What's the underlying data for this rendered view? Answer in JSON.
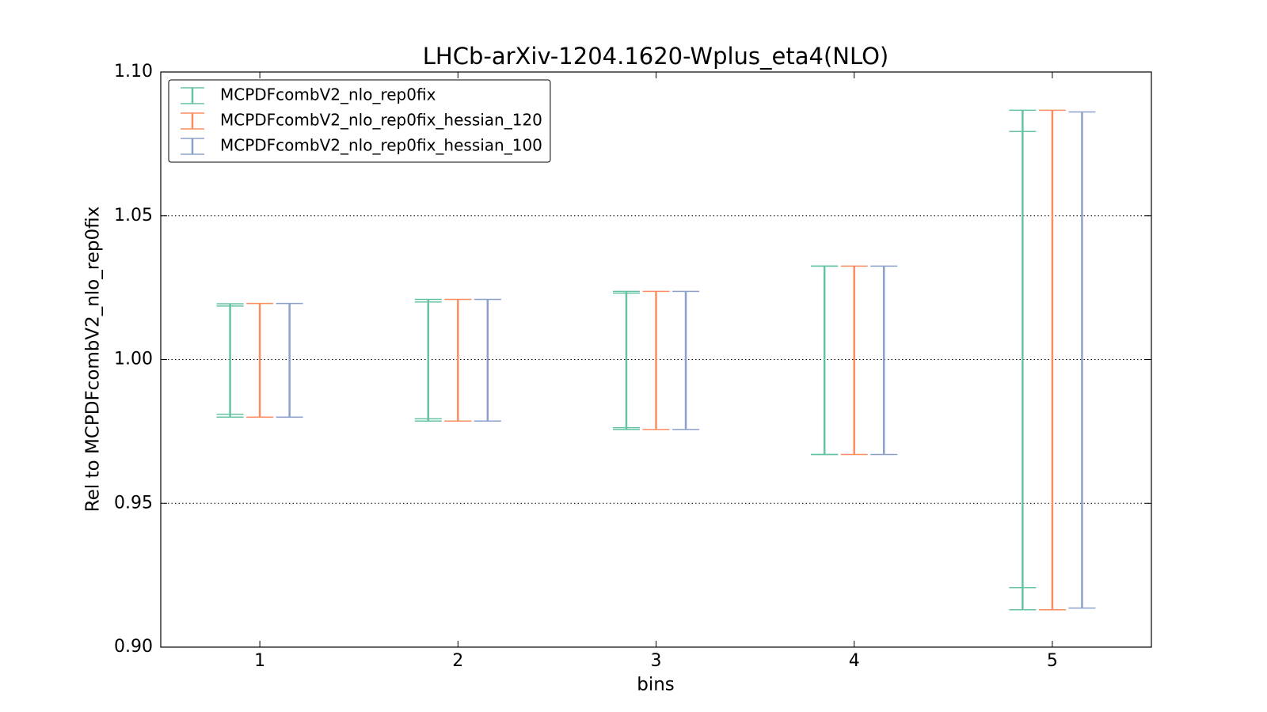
{
  "chart_data": {
    "type": "errorbar",
    "title": "LHCb-arXiv-1204.1620-Wplus_eta4(NLO)",
    "xlabel": "bins",
    "ylabel": "Rel to MCPDFcombV2_nlo_rep0fix",
    "x": [
      1,
      2,
      3,
      4,
      5
    ],
    "xlim": [
      0.5,
      5.5
    ],
    "xticks": [
      1,
      2,
      3,
      4,
      5
    ],
    "ylim": [
      0.9,
      1.1
    ],
    "yticks": [
      {
        "value": 0.9,
        "label": "0.90"
      },
      0.95,
      {
        "value": 1.0,
        "label": "1.00"
      },
      1.05,
      {
        "value": 1.1,
        "label": "1.10"
      }
    ],
    "grid": true,
    "legend": "upper left",
    "series": [
      {
        "name": "MCPDFcombV2_nlo_rep0fix",
        "color": "#66c2a5",
        "offset": -0.15,
        "upper": [
          1.0194,
          1.0209,
          1.0237,
          1.0325,
          1.0867
        ],
        "lower": [
          0.98,
          0.9786,
          0.9757,
          0.967,
          0.913
        ],
        "inner_upper": [
          1.0186,
          1.02,
          1.0231,
          1.0325,
          1.0793
        ],
        "inner_lower": [
          0.981,
          0.9794,
          0.9763,
          0.967,
          0.9207
        ]
      },
      {
        "name": "MCPDFcombV2_nlo_rep0fix_hessian_120",
        "color": "#fc8d62",
        "offset": 0,
        "upper": [
          1.0195,
          1.0209,
          1.0237,
          1.0325,
          1.0867
        ],
        "lower": [
          0.98,
          0.9786,
          0.9757,
          0.967,
          0.913
        ]
      },
      {
        "name": "MCPDFcombV2_nlo_rep0fix_hessian_100",
        "color": "#8da0cb",
        "offset": 0.15,
        "upper": [
          1.0195,
          1.0209,
          1.0237,
          1.0325,
          1.0861
        ],
        "lower": [
          0.98,
          0.9786,
          0.9757,
          0.967,
          0.9136
        ]
      }
    ]
  }
}
